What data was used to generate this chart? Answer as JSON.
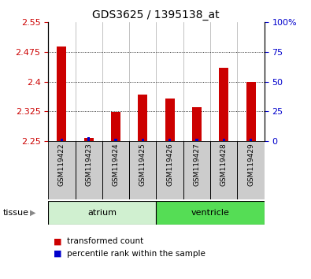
{
  "title": "GDS3625 / 1395138_at",
  "samples": [
    "GSM119422",
    "GSM119423",
    "GSM119424",
    "GSM119425",
    "GSM119426",
    "GSM119427",
    "GSM119428",
    "GSM119429"
  ],
  "red_values": [
    2.488,
    2.258,
    2.323,
    2.368,
    2.358,
    2.335,
    2.435,
    2.4
  ],
  "blue_pct": [
    2,
    3,
    2,
    2,
    2,
    2,
    2,
    2
  ],
  "ylim_left": [
    2.25,
    2.55
  ],
  "ylim_right": [
    0,
    100
  ],
  "yticks_left": [
    2.25,
    2.325,
    2.4,
    2.475,
    2.55
  ],
  "ytick_labels_left": [
    "2.25",
    "2.325",
    "2.4",
    "2.475",
    "2.55"
  ],
  "yticks_right": [
    0,
    25,
    50,
    75,
    100
  ],
  "ytick_labels_right": [
    "0",
    "25",
    "50",
    "75",
    "100%"
  ],
  "tissue_groups": [
    {
      "label": "atrium",
      "start": 0,
      "end": 4,
      "color": "#d0f0d0"
    },
    {
      "label": "ventricle",
      "start": 4,
      "end": 8,
      "color": "#55dd55"
    }
  ],
  "red_color": "#cc0000",
  "blue_color": "#0000cc",
  "baseline": 2.25,
  "tick_color_left": "#cc0000",
  "tick_color_right": "#0000cc",
  "sample_bg_color": "#cccccc",
  "tissue_label": "tissue",
  "legend": [
    {
      "color": "#cc0000",
      "label": "transformed count"
    },
    {
      "color": "#0000cc",
      "label": "percentile rank within the sample"
    }
  ]
}
